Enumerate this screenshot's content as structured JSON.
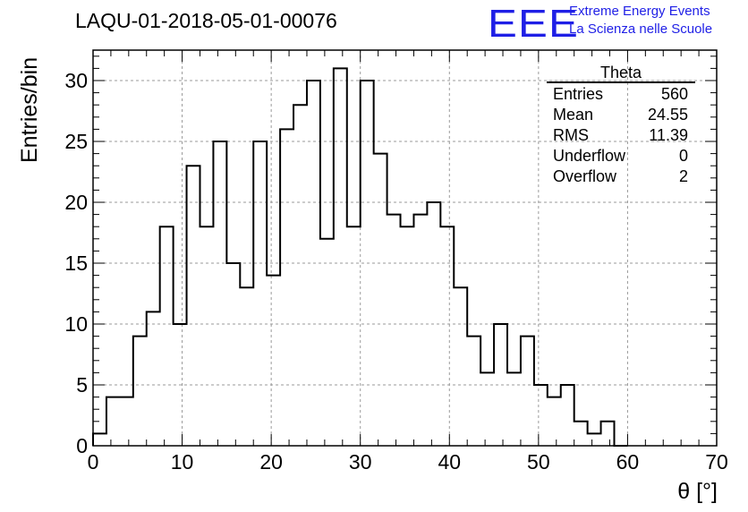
{
  "title": "LAQU-01-2018-05-01-00076",
  "logo": {
    "mark": "EEE",
    "line1": "Extreme Energy Events",
    "line2": "La Scienza nelle Scuole",
    "color": "#1f1fe6"
  },
  "stats": {
    "name": "Theta",
    "rows": [
      {
        "label": "Entries",
        "value": "560"
      },
      {
        "label": "Mean",
        "value": "24.55"
      },
      {
        "label": "RMS",
        "value": "11.39"
      },
      {
        "label": "Underflow",
        "value": "0"
      },
      {
        "label": "Overflow",
        "value": "2"
      }
    ]
  },
  "chart_data": {
    "type": "bar",
    "style": "step-histogram",
    "title": "LAQU-01-2018-05-01-00076",
    "xlabel": "θ [°]",
    "ylabel": "Entries/bin",
    "xlim": [
      0,
      70
    ],
    "ylim": [
      0,
      32.5
    ],
    "xticks": [
      0,
      10,
      20,
      30,
      40,
      50,
      60,
      70
    ],
    "yticks": [
      0,
      5,
      10,
      15,
      20,
      25,
      30
    ],
    "grid": true,
    "bin_width": 1.5,
    "bin_edges_start": 0,
    "values": [
      1,
      4,
      4,
      9,
      11,
      18,
      10,
      23,
      18,
      25,
      15,
      13,
      25,
      14,
      26,
      28,
      30,
      17,
      31,
      18,
      30,
      24,
      19,
      18,
      19,
      20,
      18,
      13,
      9,
      6,
      10,
      6,
      9,
      5,
      4,
      5,
      2,
      1,
      2,
      0
    ]
  }
}
